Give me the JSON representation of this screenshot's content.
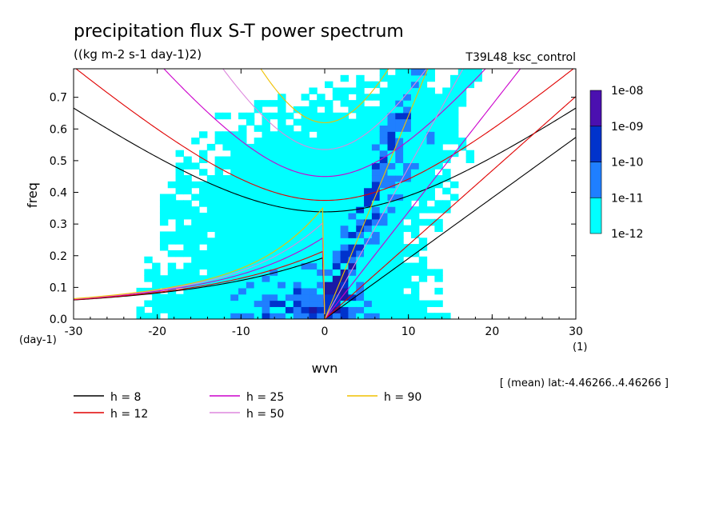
{
  "chart_data": {
    "type": "heatmap",
    "title": "precipitation flux S-T power spectrum",
    "subtitle": "((kg m-2 s-1 day-1)2)",
    "experiment": "T39L48_ksc_control",
    "xlabel": "wvn",
    "ylabel": "freq",
    "x_unit_label": "(1)",
    "y_unit_label": "(day-1)",
    "xlim": [
      -30,
      30
    ],
    "ylim": [
      0,
      0.79
    ],
    "x_ticks": [
      -30,
      -20,
      -10,
      0,
      10,
      20,
      30
    ],
    "y_ticks": [
      0.0,
      0.1,
      0.2,
      0.3,
      0.4,
      0.5,
      0.6,
      0.7
    ],
    "x_tick_labels": [
      "-30",
      "-20",
      "-10",
      "0",
      "10",
      "20",
      "30"
    ],
    "y_tick_labels": [
      "0.0",
      "0.1",
      "0.2",
      "0.3",
      "0.4",
      "0.5",
      "0.6",
      "0.7"
    ],
    "note": "[ (mean) lat:-4.46266..4.46266 ]",
    "colorbar": {
      "labels": [
        "1e-12",
        "1e-11",
        "1e-10",
        "1e-09",
        "1e-08"
      ],
      "colors": [
        "#00ffff",
        "#1f7fff",
        "#0033cc",
        "#1a1aa6",
        "#4b10b0"
      ]
    },
    "dispersion_curves": [
      {
        "name": "h =  8",
        "h": 8,
        "color": "#000000"
      },
      {
        "name": "h = 12",
        "h": 12,
        "color": "#e00000"
      },
      {
        "name": "h = 25",
        "h": 25,
        "color": "#cc00cc"
      },
      {
        "name": "h = 50",
        "h": 50,
        "color": "#dd88dd"
      },
      {
        "name": "h = 90",
        "h": 90,
        "color": "#f0c000"
      }
    ],
    "legend_placement": "bottom-left"
  }
}
